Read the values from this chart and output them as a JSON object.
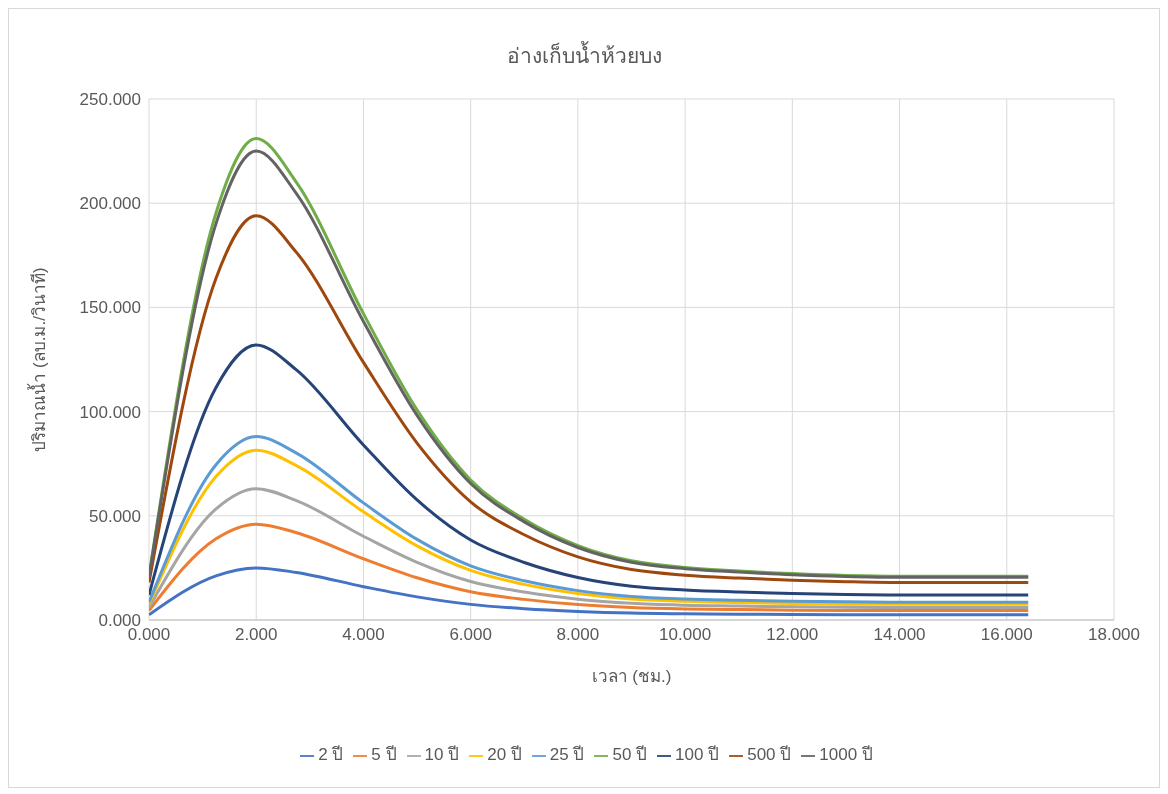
{
  "chart_data": {
    "type": "line",
    "title": "อ่างเก็บน้ำห้วยบง",
    "xlabel": "เวลา (ชม.)",
    "ylabel": "ปริมาณน้ำ (ลบ.ม./วินาที)",
    "x": [
      0,
      1.25,
      2,
      2.75,
      4,
      5,
      6,
      7,
      8,
      9,
      10,
      11,
      12,
      13,
      14,
      15,
      16.4
    ],
    "series": [
      {
        "name": "2 ปี",
        "color": "#4472c4",
        "values": [
          2.5,
          21.2,
          25,
          22.8,
          16,
          11.1,
          7.5,
          5.4,
          4.1,
          3.3,
          3.0,
          2.8,
          2.6,
          2.5,
          2.5,
          2.5,
          2.5
        ]
      },
      {
        "name": "5 ปี",
        "color": "#ed7d31",
        "values": [
          4.5,
          39,
          46,
          41.9,
          29.4,
          20.3,
          13.6,
          9.9,
          7.4,
          6.0,
          5.3,
          5.0,
          4.7,
          4.6,
          4.5,
          4.5,
          4.5
        ]
      },
      {
        "name": "10 ปี",
        "color": "#a5a5a5",
        "values": [
          6,
          53.3,
          63,
          57.3,
          40.2,
          27.7,
          18.5,
          13.4,
          10,
          8,
          7.1,
          6.7,
          6.3,
          6.1,
          6,
          6,
          6
        ]
      },
      {
        "name": "20 ปี",
        "color": "#ffc000",
        "values": [
          7.5,
          68.9,
          81.5,
          74.1,
          51.9,
          35.6,
          23.8,
          17.1,
          12.7,
          10.1,
          9,
          8.4,
          7.9,
          7.6,
          7.5,
          7.5,
          7.5
        ]
      },
      {
        "name": "25 ปี",
        "color": "#5b9bd5",
        "values": [
          8.5,
          74.5,
          88,
          80.1,
          56.2,
          38.7,
          26,
          18.8,
          14.1,
          11.3,
          10.1,
          9.5,
          9,
          8.7,
          8.5,
          8.5,
          8.5
        ]
      },
      {
        "name": "50 ปี",
        "color": "#70ad47",
        "values": [
          21,
          195.3,
          231,
          210,
          147,
          100.8,
          67.2,
          48.3,
          35.7,
          28.4,
          25.2,
          23.5,
          22.3,
          21.4,
          21,
          21,
          21
        ]
      },
      {
        "name": "100 ปี",
        "color": "#264478",
        "values": [
          12,
          111.6,
          132,
          120,
          84,
          57.6,
          38.4,
          27.6,
          20.4,
          16.2,
          14.4,
          13.4,
          12.7,
          12.2,
          12,
          12,
          12
        ]
      },
      {
        "name": "500 ปี",
        "color": "#9e480e",
        "values": [
          18,
          164,
          194,
          176.4,
          123.6,
          84.9,
          56.7,
          40.9,
          30.3,
          24.2,
          21.5,
          20.1,
          19.1,
          18.4,
          18,
          18,
          18
        ]
      },
      {
        "name": "1000 ปี",
        "color": "#636363",
        "values": [
          20.5,
          190.2,
          225,
          204.6,
          143.2,
          98.2,
          65.5,
          47.1,
          34.8,
          27.7,
          24.6,
          23,
          21.7,
          20.9,
          20.5,
          20.5,
          20.5
        ]
      }
    ],
    "xlim": [
      0,
      18
    ],
    "xticks": [
      {
        "value": 0,
        "label": "0.000"
      },
      {
        "value": 2,
        "label": "2.000"
      },
      {
        "value": 4,
        "label": "4.000"
      },
      {
        "value": 6,
        "label": "6.000"
      },
      {
        "value": 8,
        "label": "8.000"
      },
      {
        "value": 10,
        "label": "10.000"
      },
      {
        "value": 12,
        "label": "12.000"
      },
      {
        "value": 14,
        "label": "14.000"
      },
      {
        "value": 16,
        "label": "16.000"
      },
      {
        "value": 18,
        "label": "18.000"
      }
    ],
    "ylim": [
      0,
      250
    ],
    "yticks": [
      {
        "value": 0,
        "label": "0.000"
      },
      {
        "value": 50,
        "label": "50.000"
      },
      {
        "value": 100,
        "label": "100.000"
      },
      {
        "value": 150,
        "label": "150.000"
      },
      {
        "value": 200,
        "label": "200.000"
      },
      {
        "value": 250,
        "label": "250.000"
      }
    ],
    "grid": true,
    "legend": "bottom",
    "marker": "none",
    "line_style": "solid"
  }
}
